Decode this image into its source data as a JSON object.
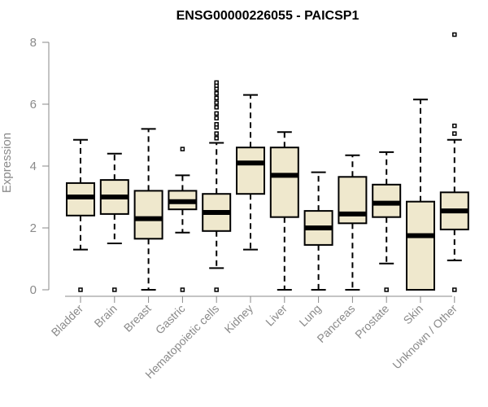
{
  "chart_data": {
    "type": "box",
    "title": "ENSG00000226055 - PAICSP1",
    "xlabel": "",
    "ylabel": "Expression",
    "ylim": [
      0,
      8
    ],
    "yticks": [
      0,
      2,
      4,
      6,
      8
    ],
    "grid": false,
    "colors": {
      "box_fill": "#efe8cd",
      "box_stroke": "#000000",
      "median": "#000000"
    },
    "categories": [
      "Bladder",
      "Brain",
      "Breast",
      "Gastric",
      "Hematopoietic cells",
      "Kidney",
      "Liver",
      "Lung",
      "Pancreas",
      "Prostate",
      "Skin",
      "Unknown / Other"
    ],
    "boxes": [
      {
        "category": "Bladder",
        "whisker_low": 1.3,
        "q1": 2.4,
        "median": 3.0,
        "q3": 3.45,
        "whisker_high": 4.85,
        "outliers": [
          0.0
        ]
      },
      {
        "category": "Brain",
        "whisker_low": 1.5,
        "q1": 2.45,
        "median": 3.0,
        "q3": 3.55,
        "whisker_high": 4.4,
        "outliers": [
          0.0
        ]
      },
      {
        "category": "Breast",
        "whisker_low": 0.0,
        "q1": 1.65,
        "median": 2.3,
        "q3": 3.2,
        "whisker_high": 5.2,
        "outliers": []
      },
      {
        "category": "Gastric",
        "whisker_low": 1.85,
        "q1": 2.6,
        "median": 2.85,
        "q3": 3.2,
        "whisker_high": 3.7,
        "outliers": [
          0.0,
          4.55
        ]
      },
      {
        "category": "Hematopoietic cells",
        "whisker_low": 0.7,
        "q1": 1.9,
        "median": 2.5,
        "q3": 3.1,
        "whisker_high": 4.75,
        "outliers": [
          0.0,
          4.9,
          5.05,
          5.25,
          5.35,
          5.55,
          5.7,
          5.9,
          6.05,
          6.2,
          6.35,
          6.5,
          6.6,
          6.7
        ]
      },
      {
        "category": "Kidney",
        "whisker_low": 1.3,
        "q1": 3.1,
        "median": 4.1,
        "q3": 4.6,
        "whisker_high": 6.3,
        "outliers": []
      },
      {
        "category": "Liver",
        "whisker_low": 0.0,
        "q1": 2.35,
        "median": 3.7,
        "q3": 4.6,
        "whisker_high": 5.1,
        "outliers": []
      },
      {
        "category": "Lung",
        "whisker_low": 0.0,
        "q1": 1.45,
        "median": 2.0,
        "q3": 2.55,
        "whisker_high": 3.8,
        "outliers": []
      },
      {
        "category": "Pancreas",
        "whisker_low": 0.0,
        "q1": 2.15,
        "median": 2.45,
        "q3": 3.65,
        "whisker_high": 4.35,
        "outliers": []
      },
      {
        "category": "Prostate",
        "whisker_low": 0.85,
        "q1": 2.35,
        "median": 2.8,
        "q3": 3.4,
        "whisker_high": 4.45,
        "outliers": [
          0.0
        ]
      },
      {
        "category": "Skin",
        "whisker_low": 0.0,
        "q1": 0.0,
        "median": 1.75,
        "q3": 2.85,
        "whisker_high": 6.15,
        "outliers": []
      },
      {
        "category": "Unknown / Other",
        "whisker_low": 0.95,
        "q1": 1.95,
        "median": 2.55,
        "q3": 3.15,
        "whisker_high": 4.85,
        "outliers": [
          0.0,
          5.05,
          5.3,
          8.25
        ]
      }
    ]
  }
}
